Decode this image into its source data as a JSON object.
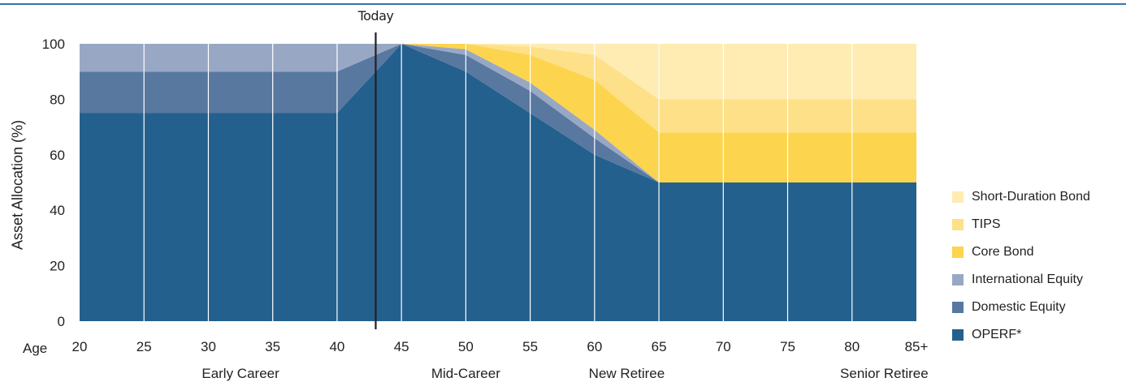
{
  "chart_data": {
    "type": "area",
    "stacked": true,
    "ylabel": "Asset Allocation (%)",
    "xlabel": "Age",
    "ylim": [
      0,
      100
    ],
    "yticks": [
      "0",
      "20",
      "40",
      "60",
      "80",
      "100"
    ],
    "x": [
      20,
      25,
      30,
      35,
      40,
      45,
      50,
      55,
      60,
      65,
      70,
      75,
      80,
      85
    ],
    "xtick_labels": [
      "20",
      "25",
      "30",
      "35",
      "40",
      "45",
      "50",
      "55",
      "60",
      "65",
      "70",
      "75",
      "80",
      "85+"
    ],
    "annotation": {
      "label": "Today",
      "x": 43
    },
    "stages": [
      {
        "label": "Early Career",
        "x": 32.5
      },
      {
        "label": "Mid-Career",
        "x": 50
      },
      {
        "label": "New Retiree",
        "x": 62.5
      },
      {
        "label": "Senior Retiree",
        "x": 82.5
      }
    ],
    "legend_position": "right",
    "series": [
      {
        "name": "OPERF*",
        "color": "#24608d",
        "values": [
          75,
          75,
          75,
          75,
          75,
          100,
          90,
          75,
          60,
          50,
          50,
          50,
          50,
          50
        ]
      },
      {
        "name": "Domestic Equity",
        "color": "#5878a0",
        "values": [
          15,
          15,
          15,
          15,
          15,
          0,
          6,
          8,
          6,
          0,
          0,
          0,
          0,
          0
        ]
      },
      {
        "name": "International Equity",
        "color": "#98a8c4",
        "values": [
          10,
          10,
          10,
          10,
          10,
          0,
          2,
          3,
          3,
          0,
          0,
          0,
          0,
          0
        ]
      },
      {
        "name": "Core Bond",
        "color": "#fdd44d",
        "values": [
          0,
          0,
          0,
          0,
          0,
          0,
          2,
          10,
          18,
          18,
          18,
          18,
          18,
          18
        ]
      },
      {
        "name": "TIPS",
        "color": "#fde088",
        "values": [
          0,
          0,
          0,
          0,
          0,
          0,
          0,
          3,
          9,
          12,
          12,
          12,
          12,
          12
        ]
      },
      {
        "name": "Short-Duration Bond",
        "color": "#feecb3",
        "values": [
          0,
          0,
          0,
          0,
          0,
          0,
          0,
          1,
          4,
          20,
          20,
          20,
          20,
          20
        ]
      }
    ]
  }
}
